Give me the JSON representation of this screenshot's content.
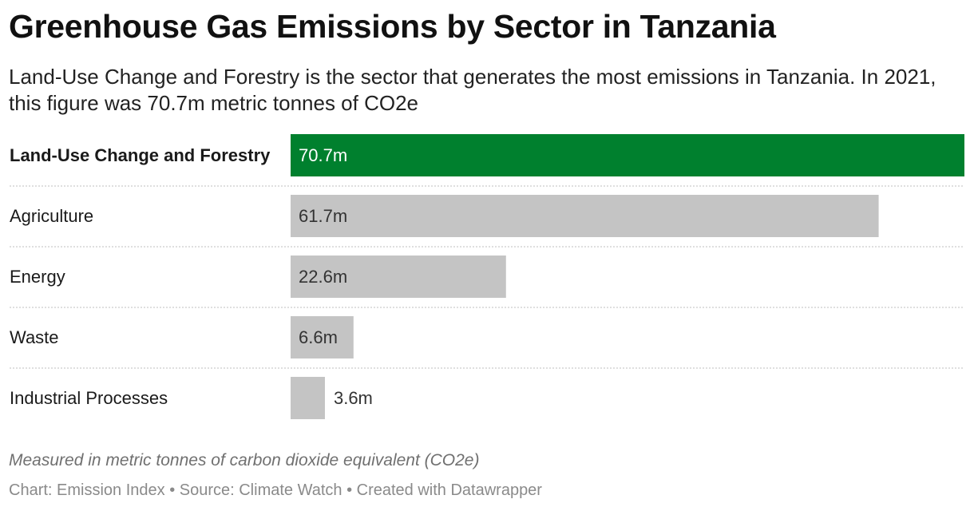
{
  "header": {
    "title": "Greenhouse Gas Emissions by Sector in Tanzania",
    "subtitle": "Land-Use Change and Forestry is the sector that generates the most emissions in Tanzania. In 2021, this figure was 70.7m metric tonnes of CO2e"
  },
  "notes": {
    "caption": "Measured in metric tonnes of carbon dioxide equivalent (CO2e)",
    "footer": "Chart: Emission Index • Source: Climate Watch • Created with Datawrapper"
  },
  "colors": {
    "highlight": "#00802e",
    "default_bar": "#c4c4c4",
    "label_on_highlight": "#ffffff",
    "label_on_default": "#333333",
    "separator": "#cccccc"
  },
  "chart_data": {
    "type": "bar",
    "orientation": "horizontal",
    "categories": [
      "Land-Use Change and Forestry",
      "Agriculture",
      "Energy",
      "Waste",
      "Industrial Processes"
    ],
    "values": [
      70.7,
      61.7,
      22.6,
      6.6,
      3.6
    ],
    "value_labels": [
      "70.7m",
      "61.7m",
      "22.6m",
      "6.6m",
      "3.6m"
    ],
    "highlighted_category": "Land-Use Change and Forestry",
    "xlim": [
      0,
      70.7
    ],
    "grid": false,
    "legend": "none"
  }
}
